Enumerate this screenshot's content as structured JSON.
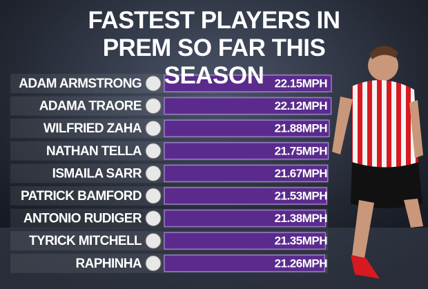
{
  "chart_data": {
    "type": "bar",
    "orientation": "horizontal",
    "title": "FASTEST PLAYERS IN PREM SO FAR THIS SEASON",
    "categories": [
      "ADAM ARMSTRONG",
      "ADAMA TRAORE",
      "WILFRIED ZAHA",
      "NATHAN TELLA",
      "ISMAILA SARR",
      "PATRICK BAMFORD",
      "ANTONIO RUDIGER",
      "TYRICK MITCHELL",
      "RAPHINHA"
    ],
    "values": [
      22.15,
      22.12,
      21.88,
      21.75,
      21.67,
      21.53,
      21.38,
      21.35,
      21.26
    ],
    "value_labels": [
      "22.15MPH",
      "22.12MPH",
      "21.88MPH",
      "21.75MPH",
      "21.67MPH",
      "21.53MPH",
      "21.38MPH",
      "21.35MPH",
      "21.26MPH"
    ],
    "color": "#5a2b8c"
  }
}
